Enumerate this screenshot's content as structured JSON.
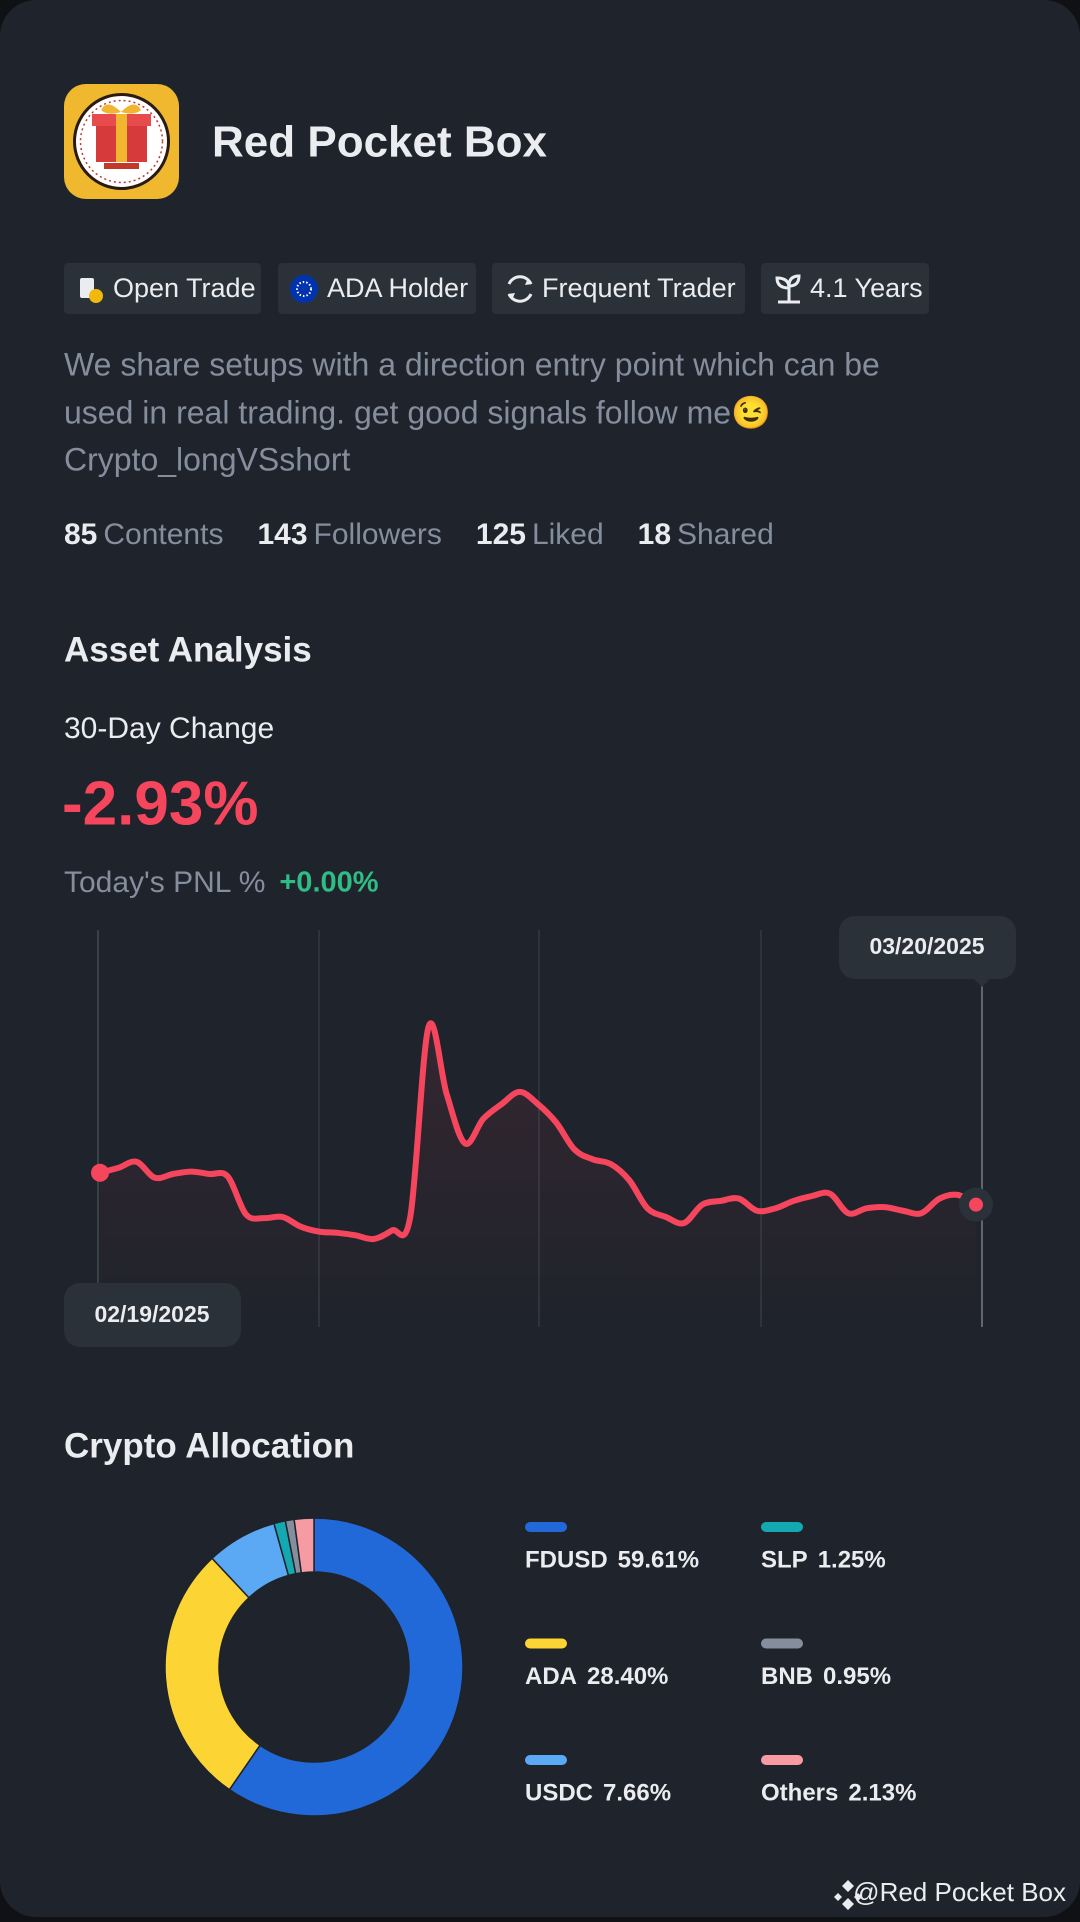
{
  "profile": {
    "name": "Red Pocket Box",
    "badges": [
      "Open Trade",
      "ADA Holder",
      "Frequent Trader",
      "4.1 Years"
    ],
    "bio": [
      "We share setups with a direction entry point which can be",
      "used in real trading. get good signals follow me😉",
      "Crypto_longVSshort"
    ],
    "stats": [
      {
        "value": 85,
        "label": "Contents"
      },
      {
        "value": 143,
        "label": "Followers"
      },
      {
        "value": 125,
        "label": "Liked"
      },
      {
        "value": 18,
        "label": "Shared"
      }
    ]
  },
  "asset_analysis": {
    "title": "Asset Analysis",
    "change_label": "30-Day Change",
    "change": "-2.93%",
    "pnl_label": "Today's PNL %",
    "pnl": "+0.00%"
  },
  "chart_data": [
    {
      "type": "line",
      "color": "#f6465d",
      "date_labels": [
        "02/19/2025",
        "03/20/2025"
      ],
      "values": [
        0,
        0.45,
        1.01,
        -0.45,
        -0.11,
        0.11,
        -0.11,
        -0.34,
        -3.83,
        -4.17,
        -4.06,
        -4.96,
        -5.41,
        -5.52,
        -5.75,
        -6.09,
        -5.3,
        -4.06,
        13.41,
        7.21,
        2.7,
        4.96,
        6.31,
        7.44,
        6.31,
        4.62,
        2.14,
        1.24,
        0.79,
        -0.68,
        -3.27,
        -4.06,
        -4.62,
        -2.93,
        -2.59,
        -2.37,
        -3.49,
        -3.27,
        -2.59,
        -2.14,
        -1.92,
        -3.72,
        -3.27,
        -3.16,
        -3.49,
        -3.72,
        -2.37,
        -2.03,
        -2.93
      ]
    },
    {
      "type": "donut",
      "title": "Crypto Allocation",
      "categories": [
        "FDUSD",
        "ADA",
        "USDC",
        "SLP",
        "BNB",
        "Others"
      ],
      "values": [
        59.61,
        28.4,
        7.66,
        1.25,
        0.95,
        2.13
      ],
      "value_labels": [
        "59.61%",
        "28.40%",
        "7.66%",
        "1.25%",
        "0.95%",
        "2.13%"
      ],
      "colors": [
        "#2169d8",
        "#fcd535",
        "#5ba8f5",
        "#14a8b1",
        "#848e9c",
        "#f69ba4"
      ]
    }
  ],
  "watermark": "@Red Pocket Box"
}
